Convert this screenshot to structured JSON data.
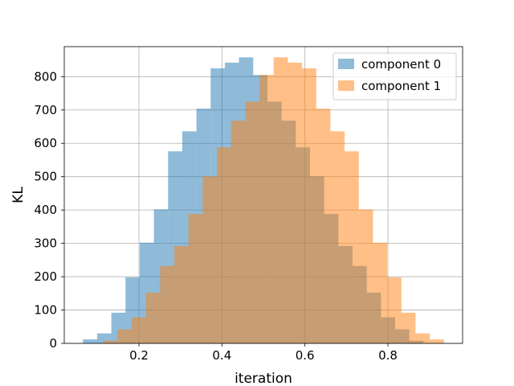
{
  "chart_data": {
    "type": "histogram",
    "title": "",
    "xlabel": "iteration",
    "ylabel": "KL",
    "xlim": [
      0.02,
      0.98
    ],
    "ylim": [
      0,
      890
    ],
    "xticks": [
      0.2,
      0.4,
      0.6,
      0.8
    ],
    "xtick_labels": [
      "0.2",
      "0.4",
      "0.6",
      "0.8"
    ],
    "yticks": [
      0,
      100,
      200,
      300,
      400,
      500,
      600,
      700,
      800
    ],
    "ytick_labels": [
      "0",
      "100",
      "200",
      "300",
      "400",
      "500",
      "600",
      "700",
      "800"
    ],
    "grid": true,
    "legend_position": "top-right",
    "series": [
      {
        "name": "component 0",
        "color": "#1f77b4",
        "opacity": 0.5,
        "bin_edges": [
          0.065,
          0.0992,
          0.1334,
          0.1676,
          0.2018,
          0.236,
          0.2702,
          0.3044,
          0.3386,
          0.3728,
          0.407,
          0.4412,
          0.4754,
          0.5096,
          0.5438,
          0.578,
          0.6122,
          0.6464,
          0.6806,
          0.7148,
          0.749,
          0.7832,
          0.8174,
          0.8516,
          0.8858
        ],
        "counts": [
          12,
          30,
          92,
          198,
          302,
          402,
          576,
          636,
          704,
          825,
          842,
          858,
          805,
          725,
          668,
          588,
          501,
          388,
          292,
          232,
          152,
          78,
          42,
          8
        ]
      },
      {
        "name": "component 1",
        "color": "#ff7f0e",
        "opacity": 0.5,
        "bin_edges": [
          0.1142,
          0.1484,
          0.1826,
          0.2168,
          0.251,
          0.2852,
          0.3194,
          0.3536,
          0.3878,
          0.422,
          0.4562,
          0.4904,
          0.5246,
          0.5588,
          0.593,
          0.6272,
          0.6614,
          0.6956,
          0.7298,
          0.764,
          0.7982,
          0.8324,
          0.8666,
          0.9008,
          0.935
        ],
        "counts": [
          8,
          42,
          78,
          152,
          232,
          292,
          388,
          501,
          588,
          668,
          725,
          805,
          858,
          842,
          825,
          704,
          636,
          576,
          402,
          302,
          198,
          92,
          30,
          12
        ]
      }
    ]
  }
}
